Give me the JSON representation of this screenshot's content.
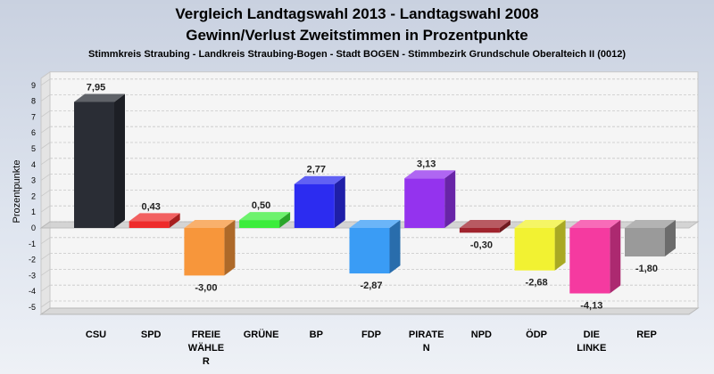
{
  "chart_data": {
    "type": "bar",
    "title_line1": "Vergleich Landtagswahl 2013 - Landtagswahl 2008",
    "title_line2": "Gewinn/Verlust Zweitstimmen in Prozentpunkte",
    "subtitle": "Stimmkreis Straubing - Landkreis Straubing-Bogen - Stadt BOGEN - Stimmbezirk Grundschule Oberalteich II (0012)",
    "ylabel": "Prozentpunkte",
    "xlabel": "",
    "ylim": [
      -5,
      9
    ],
    "yticks": [
      "9",
      "8",
      "7",
      "6",
      "5",
      "4",
      "3",
      "2",
      "1",
      "0",
      "-1",
      "-2",
      "-3",
      "-4",
      "-5"
    ],
    "grid": true,
    "categories": [
      {
        "lines": [
          "CSU"
        ]
      },
      {
        "lines": [
          "SPD"
        ]
      },
      {
        "lines": [
          "FREIE",
          "WÄHLE",
          "R"
        ]
      },
      {
        "lines": [
          "GRÜNE"
        ]
      },
      {
        "lines": [
          "BP"
        ]
      },
      {
        "lines": [
          "FDP"
        ]
      },
      {
        "lines": [
          "PIRATE",
          "N"
        ]
      },
      {
        "lines": [
          "NPD"
        ]
      },
      {
        "lines": [
          "ÖDP"
        ]
      },
      {
        "lines": [
          "DIE",
          "LINKE"
        ]
      },
      {
        "lines": [
          "REP"
        ]
      }
    ],
    "values": [
      7.95,
      0.43,
      -3.0,
      0.5,
      2.77,
      -2.87,
      3.13,
      -0.3,
      -2.68,
      -4.13,
      -1.8
    ],
    "value_labels": [
      "7,95",
      "0,43",
      "-3,00",
      "0,50",
      "2,77",
      "-2,87",
      "3,13",
      "-0,30",
      "-2,68",
      "-4,13",
      "-1,80"
    ],
    "colors": [
      "#2a2d35",
      "#ee2b2b",
      "#f7963b",
      "#3ced3c",
      "#2c2cf0",
      "#3a9cf5",
      "#9433ee",
      "#a0232d",
      "#f2f232",
      "#f53aa0",
      "#9a9a9a"
    ]
  }
}
